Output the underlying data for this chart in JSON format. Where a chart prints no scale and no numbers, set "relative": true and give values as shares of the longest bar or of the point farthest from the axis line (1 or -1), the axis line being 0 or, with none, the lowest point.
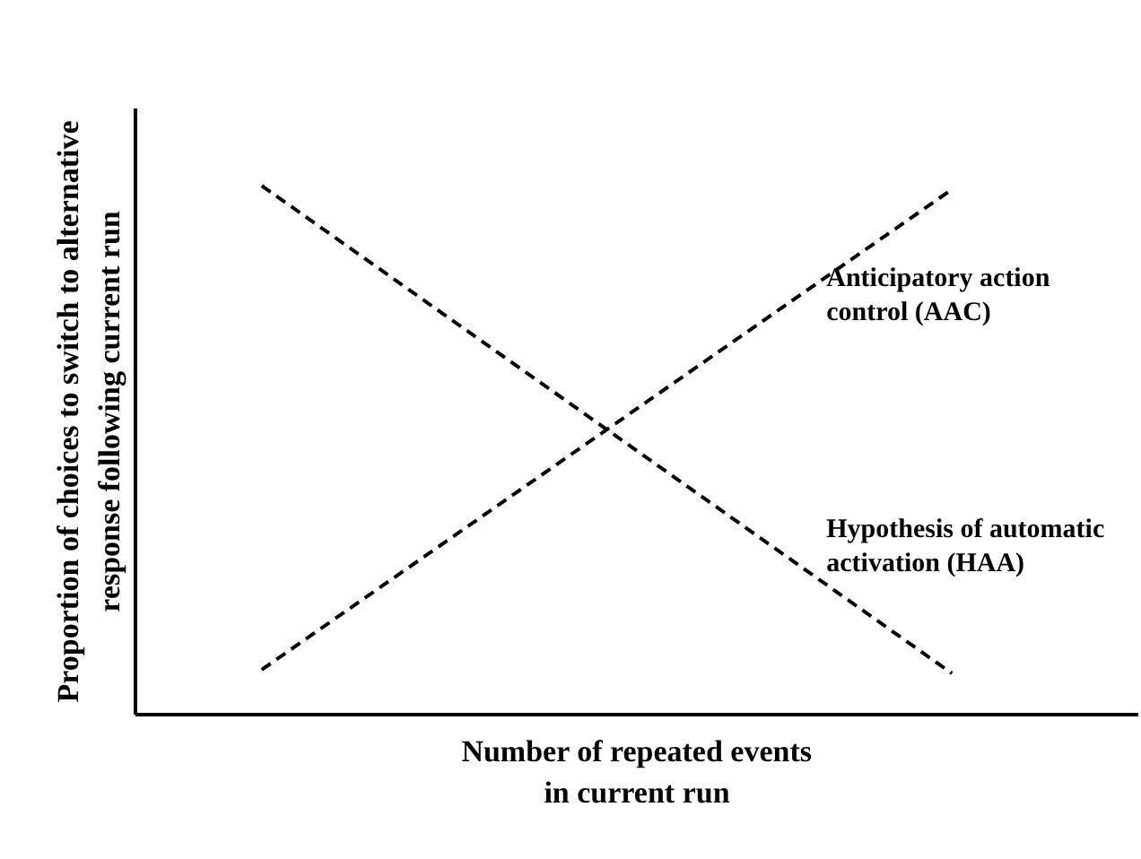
{
  "chart_data": {
    "type": "line",
    "relative": true,
    "categories": [
      null,
      null
    ],
    "xlabel": "Number of repeated events in current run",
    "ylabel": "Proportion of choices to switch to alternative response following current run",
    "line_style": "dashed",
    "marker": "none",
    "grid": false,
    "legend": false,
    "series": [
      {
        "name": "Anticipatory action control (AAC)",
        "color": "#000000",
        "values": [
          0.085,
          0.993
        ]
      },
      {
        "name": "Hypothesis of automatic activation (HAA)",
        "color": "#000000",
        "values": [
          1,
          0.078
        ]
      }
    ]
  }
}
